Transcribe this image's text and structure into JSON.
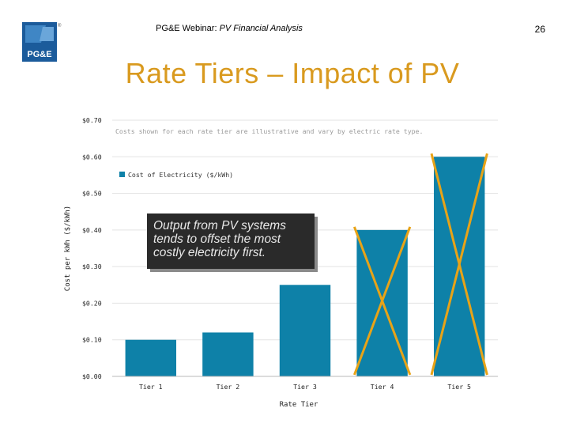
{
  "header": {
    "prefix": "PG&E Webinar: ",
    "title_italic": "PV Financial Analysis",
    "page_number": "26"
  },
  "slide_title": "Rate Tiers – Impact of PV",
  "logo": {
    "text": "PG&E",
    "mark": "®"
  },
  "callout": {
    "text": "Output from PV systems tends to offset the most costly electricity first."
  },
  "colors": {
    "bar": "#0e81a8",
    "cross": "#e8a317",
    "title": "#d99a1f"
  },
  "chart_data": {
    "type": "bar",
    "title": "",
    "annotation": "Costs shown for each rate tier are illustrative and vary by electric rate type.",
    "xlabel": "Rate Tier",
    "ylabel": "Cost per kWh ($/kWh)",
    "categories": [
      "Tier 1",
      "Tier 2",
      "Tier 3",
      "Tier 4",
      "Tier 5"
    ],
    "series": [
      {
        "name": "Cost of Electricity ($/kWh)",
        "values": [
          0.1,
          0.12,
          0.25,
          0.4,
          0.6
        ]
      }
    ],
    "ylim": [
      0,
      0.7
    ],
    "yticks": [
      "$0.00",
      "$0.10",
      "$0.20",
      "$0.30",
      "$0.40",
      "$0.50",
      "$0.60",
      "$0.70"
    ],
    "crossed_out": [
      "Tier 4",
      "Tier 5"
    ],
    "legend_position": "top-left",
    "grid": true
  }
}
